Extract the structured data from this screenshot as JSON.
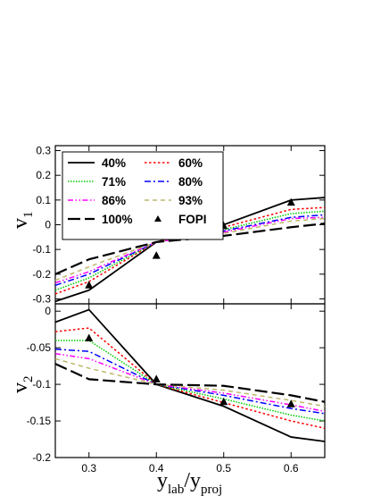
{
  "chart_data": [
    {
      "panel": "upper",
      "type": "line",
      "ylabel": "v",
      "ylabel_sub": "1",
      "xlim": [
        0.25,
        0.65
      ],
      "ylim": [
        -0.32,
        0.32
      ],
      "x_ticks": [
        0.3,
        0.4,
        0.5,
        0.6
      ],
      "y_ticks": [
        -0.3,
        -0.2,
        -0.1,
        0,
        0.1,
        0.2,
        0.3
      ],
      "y_tick_labels": [
        "-0.3",
        "-0.2",
        "-0.1",
        "0",
        "0.1",
        "0.2",
        "0.3"
      ],
      "legend_position": "top-left",
      "x": [
        0.25,
        0.3,
        0.4,
        0.5,
        0.6,
        0.65
      ],
      "series": [
        {
          "name": "40%",
          "color": "#000000",
          "dash": "solid",
          "values": [
            -0.31,
            -0.265,
            -0.07,
            0.0,
            0.1,
            0.11
          ]
        },
        {
          "name": "60%",
          "color": "#ff0000",
          "dash": "dotted",
          "values": [
            -0.28,
            -0.23,
            -0.07,
            -0.01,
            0.062,
            0.07
          ]
        },
        {
          "name": "71%",
          "color": "#00cc00",
          "dash": "dotted-fine",
          "values": [
            -0.265,
            -0.215,
            -0.07,
            -0.02,
            0.045,
            0.055
          ]
        },
        {
          "name": "80%",
          "color": "#0000ff",
          "dash": "dash-dot",
          "values": [
            -0.245,
            -0.2,
            -0.07,
            -0.025,
            0.03,
            0.04
          ]
        },
        {
          "name": "86%",
          "color": "#ff00ff",
          "dash": "dash-dot-dot",
          "values": [
            -0.235,
            -0.19,
            -0.07,
            -0.03,
            0.025,
            0.03
          ]
        },
        {
          "name": "93%",
          "color": "#bdb76b",
          "dash": "dashed-short",
          "values": [
            -0.225,
            -0.17,
            -0.07,
            -0.035,
            0.015,
            0.025
          ]
        },
        {
          "name": "100%",
          "color": "#000000",
          "dash": "dashed-long",
          "values": [
            -0.2,
            -0.14,
            -0.07,
            -0.045,
            -0.01,
            0.005
          ]
        }
      ],
      "markers": {
        "name": "FOPI",
        "symbol": "triangle",
        "x": [
          0.3,
          0.4,
          0.5,
          0.6
        ],
        "y": [
          -0.245,
          -0.125,
          -0.005,
          0.09
        ]
      }
    },
    {
      "panel": "lower",
      "type": "line",
      "ylabel": "v",
      "ylabel_sub": "2",
      "xlabel": "y",
      "xlabel_sub1": "lab",
      "xlabel_mid": "/y",
      "xlabel_sub2": "proj",
      "xlim": [
        0.25,
        0.65
      ],
      "ylim": [
        -0.2,
        0.01
      ],
      "x_ticks": [
        0.3,
        0.4,
        0.5,
        0.6
      ],
      "x_tick_labels": [
        "0.3",
        "0.4",
        "0.5",
        "0.6"
      ],
      "y_ticks": [
        -0.2,
        -0.15,
        -0.1,
        -0.05,
        0
      ],
      "y_tick_labels": [
        "-0.2",
        "-0.15",
        "-0.1",
        "-0.05",
        "0"
      ],
      "x": [
        0.25,
        0.3,
        0.4,
        0.5,
        0.6,
        0.65
      ],
      "series": [
        {
          "name": "40%",
          "color": "#000000",
          "dash": "solid",
          "values": [
            -0.015,
            0.002,
            -0.1,
            -0.13,
            -0.172,
            -0.178
          ]
        },
        {
          "name": "60%",
          "color": "#ff0000",
          "dash": "dotted",
          "values": [
            -0.028,
            -0.023,
            -0.1,
            -0.125,
            -0.15,
            -0.16
          ]
        },
        {
          "name": "71%",
          "color": "#00cc00",
          "dash": "dotted-fine",
          "values": [
            -0.04,
            -0.04,
            -0.1,
            -0.12,
            -0.142,
            -0.15
          ]
        },
        {
          "name": "80%",
          "color": "#0000ff",
          "dash": "dash-dot",
          "values": [
            -0.052,
            -0.055,
            -0.1,
            -0.115,
            -0.133,
            -0.14
          ]
        },
        {
          "name": "86%",
          "color": "#ff00ff",
          "dash": "dash-dot-dot",
          "values": [
            -0.058,
            -0.065,
            -0.1,
            -0.112,
            -0.128,
            -0.137
          ]
        },
        {
          "name": "93%",
          "color": "#bdb76b",
          "dash": "dashed-short",
          "values": [
            -0.065,
            -0.078,
            -0.1,
            -0.108,
            -0.122,
            -0.13
          ]
        },
        {
          "name": "100%",
          "color": "#000000",
          "dash": "dashed-long",
          "values": [
            -0.072,
            -0.093,
            -0.1,
            -0.102,
            -0.115,
            -0.124
          ]
        }
      ],
      "markers": {
        "name": "FOPI",
        "symbol": "triangle",
        "x": [
          0.3,
          0.4,
          0.5,
          0.6
        ],
        "y": [
          -0.037,
          -0.093,
          -0.124,
          -0.127
        ]
      }
    }
  ]
}
